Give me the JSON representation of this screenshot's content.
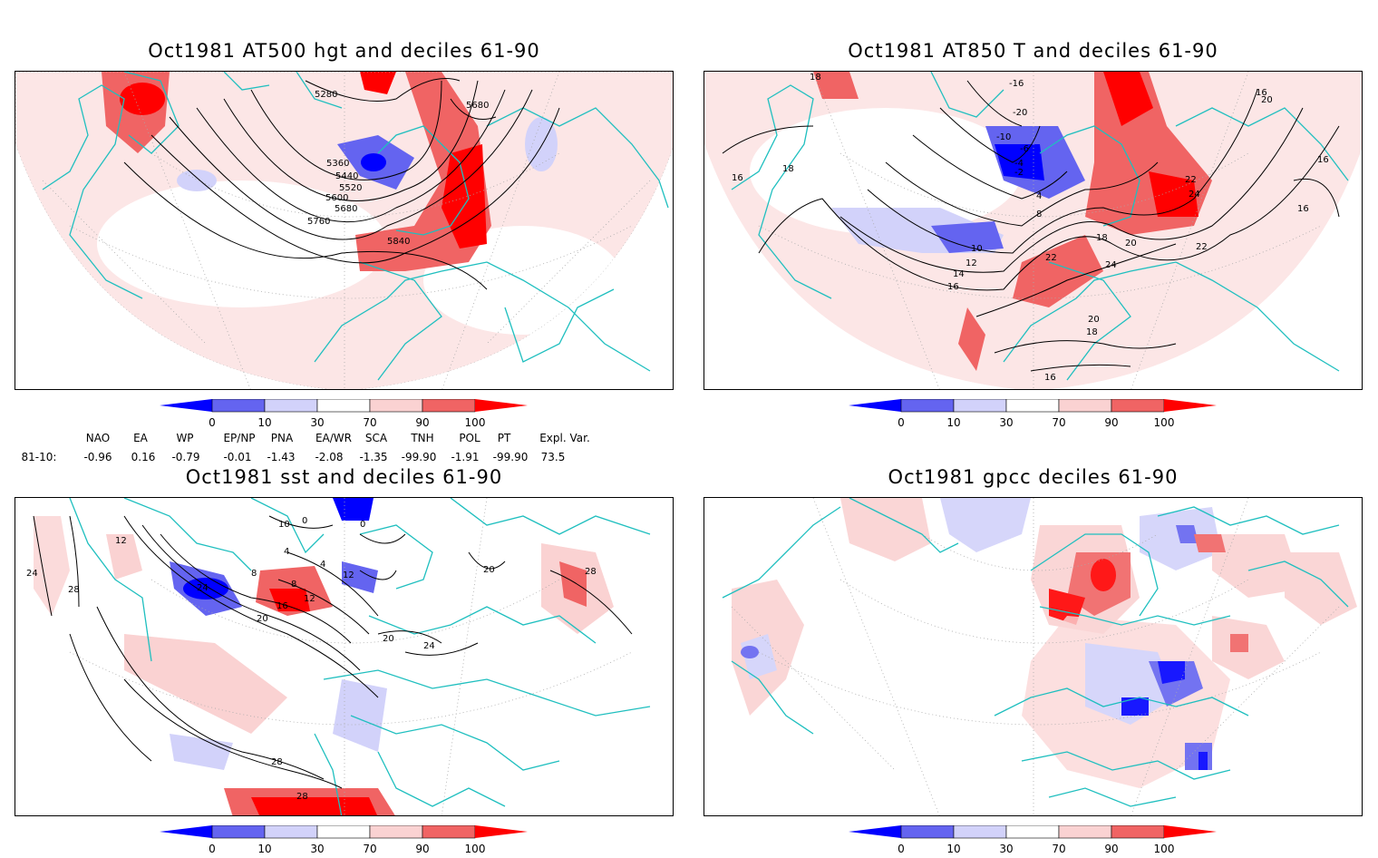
{
  "panels": [
    {
      "title": "Oct1981 AT500 hgt and deciles 61-90",
      "contour_labels": [
        "5280",
        "5680",
        "5360",
        "5440",
        "5520",
        "5600",
        "5680",
        "5760",
        "5840"
      ]
    },
    {
      "title": "Oct1981 AT850 T and deciles 61-90",
      "contour_labels": [
        "18",
        "16",
        "18",
        "16",
        "20",
        "16",
        "16",
        "-16",
        "-20",
        "-10",
        "-6",
        "-4",
        "-2",
        "4",
        "8",
        "10",
        "12",
        "14",
        "16",
        "18",
        "20",
        "22",
        "24",
        "22",
        "24",
        "22",
        "20",
        "18",
        "16"
      ]
    },
    {
      "title": "Oct1981 sst and deciles 61-90",
      "contour_labels": [
        "24",
        "28",
        "12",
        "10",
        "0",
        "0",
        "4",
        "8",
        "4",
        "8",
        "12",
        "16",
        "12",
        "20",
        "24",
        "20",
        "24",
        "20",
        "28",
        "28",
        "28"
      ]
    },
    {
      "title": "Oct1981 gpcc deciles 61-90",
      "contour_labels": []
    }
  ],
  "colorbar": {
    "labels": [
      "0",
      "10",
      "30",
      "70",
      "90",
      "100"
    ],
    "colors": {
      "dark_blue": "#0000ff",
      "mid_blue": "#6464f0",
      "light_blue": "#d2d2fa",
      "white": "#ffffff",
      "light_red": "#fad2d2",
      "mid_red": "#f06464",
      "dark_red": "#ff0000"
    }
  },
  "indices": {
    "row_label": "81-10:",
    "headers": [
      "NAO",
      "EA",
      "WP",
      "EP/NP",
      "PNA",
      "EA/WR",
      "SCA",
      "TNH",
      "POL",
      "PT",
      "Expl. Var."
    ],
    "values": [
      "-0.96",
      "0.16",
      "-0.79",
      "-0.01",
      "-1.43",
      "-2.08",
      "-1.35",
      "-99.90",
      "-1.91",
      "-99.90",
      "73.5"
    ]
  },
  "map_colors": {
    "coastline": "#1fbfbf",
    "contour": "#000000",
    "grid": "#aaaaaa"
  }
}
